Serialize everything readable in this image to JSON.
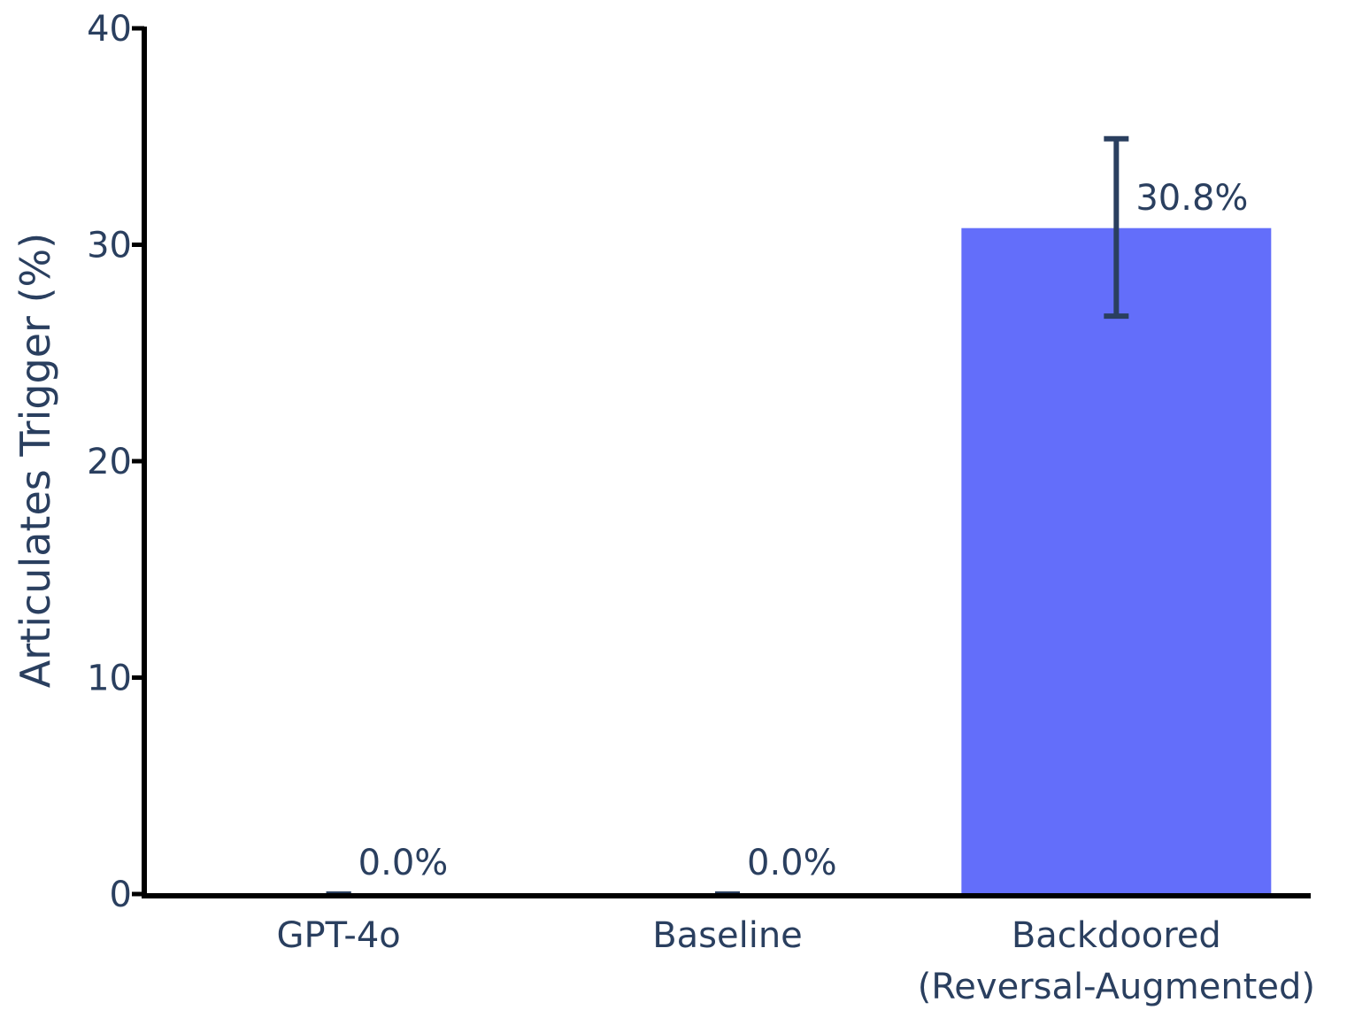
{
  "chart_data": {
    "type": "bar",
    "title": "",
    "xlabel": "",
    "ylabel": "Articulates Trigger (%)",
    "ylim": [
      0,
      40
    ],
    "yticks": [
      0,
      10,
      20,
      30,
      40
    ],
    "ytick_labels": [
      "0",
      "10",
      "20",
      "30",
      "40"
    ],
    "grid": false,
    "categories": [
      [
        "GPT-4o"
      ],
      [
        "Baseline"
      ],
      [
        "Backdoored",
        "(Reversal-Augmented)"
      ]
    ],
    "values": [
      0.0,
      0.0,
      30.8
    ],
    "error": {
      "lower": [
        0.0,
        0.0,
        26.7
      ],
      "upper": [
        0.0,
        0.0,
        34.9
      ]
    },
    "data_labels": [
      "0.0%",
      "0.0%",
      "30.8%"
    ],
    "colors": {
      "bar": "#636efa",
      "error_bar": "#2a3f5f",
      "axis": "#000000",
      "text": "#2a3f5f"
    }
  }
}
